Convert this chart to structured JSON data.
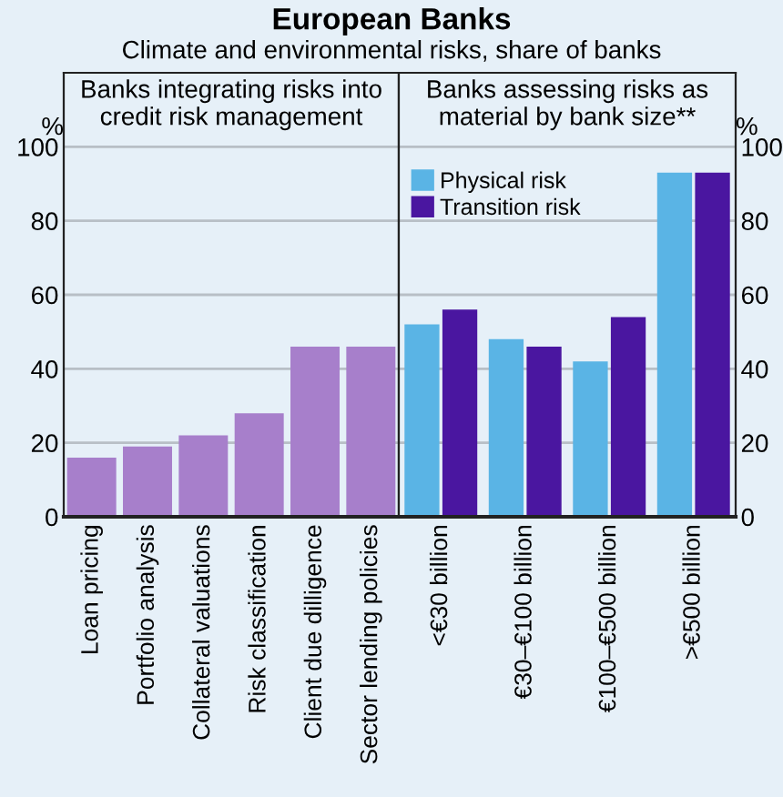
{
  "chart_data": [
    {
      "type": "bar",
      "title": "European Banks",
      "subtitle": "Climate and environmental risks, share of banks",
      "ylabel": "%",
      "annotations": [
        "Banks integrating risks into\ncredit risk management"
      ],
      "categories": [
        "Loan pricing",
        "Portfolio analysis",
        "Collateral valuations",
        "Risk classification",
        "Client due dilligence",
        "Sector lending policies"
      ],
      "values": [
        16,
        19,
        22,
        28,
        46,
        46
      ],
      "color": "#a77fcb",
      "ylim": [
        0,
        120
      ],
      "yticks": [
        0,
        20,
        40,
        60,
        80,
        100
      ],
      "grid": "y",
      "legend": false
    },
    {
      "type": "bar",
      "y2label": "%",
      "annotations": [
        "Banks assessing risks as\nmaterial by bank size**"
      ],
      "categories": [
        "<€30 billion",
        "€30–€100 billion",
        "€100–€500 billion",
        ">€500 billion"
      ],
      "series": [
        {
          "name": "Physical risk",
          "color": "#5ab4e5",
          "values": [
            52,
            48,
            42,
            93
          ],
          "axis": "y2"
        },
        {
          "name": "Transition risk",
          "color": "#4a16a0",
          "values": [
            56,
            46,
            54,
            93
          ],
          "axis": "y2"
        }
      ],
      "y2lim": [
        0,
        120
      ],
      "y2ticks": [
        0,
        20,
        40,
        60,
        80,
        100
      ],
      "grid": "y",
      "legend": "top left"
    }
  ]
}
